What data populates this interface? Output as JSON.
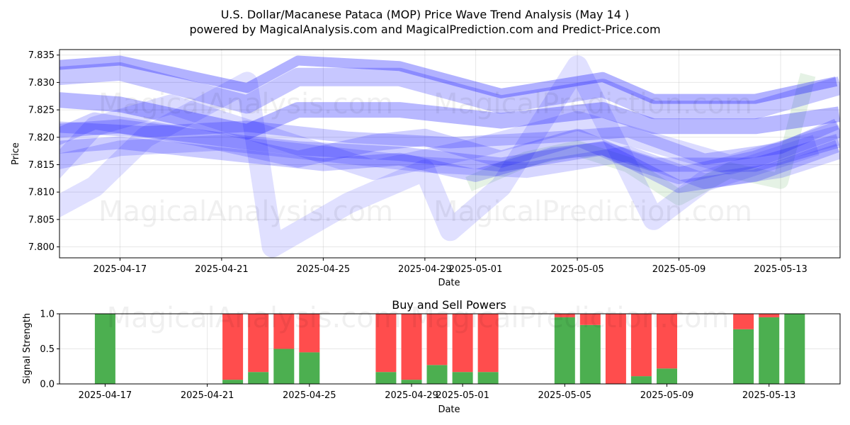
{
  "titles": {
    "main_line1": "U.S. Dollar/Macanese Pataca (MOP) Price Wave Trend Analysis (May 14 )",
    "main_line2": "powered by MagicalAnalysis.com and MagicalPrediction.com and Predict-Price.com"
  },
  "watermarks": {
    "left": "MagicalAnalysis.com",
    "right": "MagicalPrediction.com",
    "bottom": "MagicalAnalysis.com    MagicalPrediction.com"
  },
  "colors": {
    "wave": "#0000ff",
    "wave_green": "#008000",
    "buy": "#4caf50",
    "sell": "#ff4d4d"
  },
  "chart_data": [
    {
      "type": "area",
      "title": "",
      "xlabel": "Date",
      "ylabel": "Price",
      "ylim": [
        7.798,
        7.836
      ],
      "yticks": [
        "7.800",
        "7.805",
        "7.810",
        "7.815",
        "7.820",
        "7.825",
        "7.830",
        "7.835"
      ],
      "xticks": [
        "2025-04-17",
        "2025-04-21",
        "2025-04-25",
        "2025-04-29",
        "2025-05-01",
        "2025-05-05",
        "2025-05-09",
        "2025-05-13"
      ],
      "grid": true,
      "series": [
        {
          "x": [
            "2025-04-14",
            "2025-04-17",
            "2025-04-22",
            "2025-04-24",
            "2025-04-28",
            "2025-05-02",
            "2025-05-06",
            "2025-05-08",
            "2025-05-12",
            "2025-05-15"
          ],
          "values": [
            7.827,
            7.826,
            7.821,
            7.825,
            7.825,
            7.823,
            7.825,
            7.822,
            7.822,
            7.824
          ]
        },
        {
          "x": [
            "2025-04-14",
            "2025-04-17",
            "2025-04-22",
            "2025-04-24",
            "2025-04-28",
            "2025-05-02",
            "2025-05-06",
            "2025-05-08",
            "2025-05-12",
            "2025-05-15"
          ],
          "values": [
            7.831,
            7.832,
            7.826,
            7.831,
            7.831,
            7.826,
            7.829,
            7.825,
            7.825,
            7.829
          ]
        },
        {
          "x": [
            "2025-04-14",
            "2025-04-17",
            "2025-04-22",
            "2025-04-24",
            "2025-04-28",
            "2025-05-02",
            "2025-05-06",
            "2025-05-08",
            "2025-05-12",
            "2025-05-15"
          ],
          "values": [
            7.821,
            7.822,
            7.819,
            7.818,
            7.817,
            7.815,
            7.818,
            7.815,
            7.815,
            7.819
          ]
        },
        {
          "x": [
            "2025-04-14",
            "2025-04-16",
            "2025-04-20",
            "2025-04-24",
            "2025-04-27",
            "2025-04-29",
            "2025-05-02",
            "2025-05-05",
            "2025-05-07",
            "2025-05-09",
            "2025-05-12",
            "2025-05-15"
          ],
          "values": [
            7.819,
            7.823,
            7.82,
            7.816,
            7.819,
            7.82,
            7.816,
            7.82,
            7.816,
            7.813,
            7.816,
            7.821
          ]
        },
        {
          "x": [
            "2025-04-14",
            "2025-04-16",
            "2025-04-18",
            "2025-04-22",
            "2025-04-23",
            "2025-04-26",
            "2025-04-29",
            "2025-04-30",
            "2025-05-02",
            "2025-05-05",
            "2025-05-08",
            "2025-05-10",
            "2025-05-14"
          ],
          "values": [
            7.806,
            7.811,
            7.82,
            7.83,
            7.8,
            7.808,
            7.814,
            7.803,
            7.811,
            7.833,
            7.805,
            7.812,
            7.818
          ]
        },
        {
          "x": [
            "2025-04-14",
            "2025-04-17",
            "2025-04-21",
            "2025-04-25",
            "2025-04-28",
            "2025-05-01",
            "2025-05-04",
            "2025-05-06",
            "2025-05-09",
            "2025-05-12",
            "2025-05-15"
          ],
          "values": [
            7.818,
            7.819,
            7.817,
            7.815,
            7.816,
            7.813,
            7.817,
            7.818,
            7.811,
            7.813,
            7.818
          ]
        },
        {
          "x": [
            "2025-04-14",
            "2025-04-18",
            "2025-04-22",
            "2025-04-26",
            "2025-04-30",
            "2025-05-04",
            "2025-05-07",
            "2025-05-10",
            "2025-05-13",
            "2025-05-15"
          ],
          "values": [
            7.822,
            7.821,
            7.822,
            7.82,
            7.819,
            7.82,
            7.821,
            7.816,
            7.818,
            7.822
          ]
        },
        {
          "x": [
            "2025-04-14",
            "2025-04-16",
            "2025-04-19",
            "2025-04-23",
            "2025-04-27",
            "2025-05-01",
            "2025-05-05",
            "2025-05-08",
            "2025-05-11",
            "2025-05-15"
          ],
          "values": [
            7.812,
            7.822,
            7.826,
            7.82,
            7.814,
            7.818,
            7.823,
            7.819,
            7.815,
            7.82
          ]
        },
        {
          "x": [
            "2025-04-14",
            "2025-04-17",
            "2025-04-21",
            "2025-04-25",
            "2025-04-29",
            "2025-05-03",
            "2025-05-07",
            "2025-05-10",
            "2025-05-13",
            "2025-05-15"
          ],
          "values": [
            7.815,
            7.818,
            7.819,
            7.817,
            7.815,
            7.814,
            7.817,
            7.812,
            7.814,
            7.817
          ]
        },
        {
          "x": [
            "2025-04-14",
            "2025-04-17",
            "2025-04-22",
            "2025-04-24",
            "2025-04-28",
            "2025-05-02",
            "2025-05-06",
            "2025-05-08",
            "2025-05-12",
            "2025-05-15"
          ],
          "values": [
            7.833,
            7.834,
            7.829,
            7.834,
            7.833,
            7.828,
            7.831,
            7.827,
            7.827,
            7.83
          ]
        }
      ],
      "green_series": [
        {
          "x": [
            "2025-05-01",
            "2025-05-03",
            "2025-05-05",
            "2025-05-07",
            "2025-05-09",
            "2025-05-11",
            "2025-05-13",
            "2025-05-14"
          ],
          "values": [
            7.812,
            7.816,
            7.818,
            7.815,
            7.809,
            7.814,
            7.812,
            7.83
          ]
        }
      ]
    },
    {
      "type": "bar",
      "title": "Buy and Sell Powers",
      "xlabel": "Date",
      "ylabel": "Signal Strength",
      "ylim": [
        0,
        1.0
      ],
      "yticks": [
        "0.0",
        "0.5",
        "1.0"
      ],
      "xticks": [
        "2025-04-17",
        "2025-04-21",
        "2025-04-25",
        "2025-04-29",
        "2025-05-01",
        "2025-05-05",
        "2025-05-09",
        "2025-05-13"
      ],
      "grid": true,
      "categories": [
        "2025-04-17",
        "2025-04-22",
        "2025-04-23",
        "2025-04-24",
        "2025-04-25",
        "2025-04-28",
        "2025-04-29",
        "2025-04-30",
        "2025-05-01",
        "2025-05-02",
        "2025-05-05",
        "2025-05-06",
        "2025-05-07",
        "2025-05-08",
        "2025-05-09",
        "2025-05-12",
        "2025-05-13",
        "2025-05-14"
      ],
      "series": [
        {
          "name": "Buy",
          "values": [
            1.0,
            0.06,
            0.17,
            0.5,
            0.45,
            0.17,
            0.06,
            0.27,
            0.17,
            0.17,
            0.95,
            0.84,
            0.0,
            0.11,
            0.22,
            0.78,
            0.95,
            1.0
          ]
        },
        {
          "name": "Sell",
          "values": [
            0.0,
            0.94,
            0.83,
            0.5,
            0.55,
            0.83,
            0.94,
            0.73,
            0.83,
            0.83,
            0.05,
            0.16,
            1.0,
            0.89,
            0.78,
            0.22,
            0.05,
            0.0
          ]
        }
      ]
    }
  ]
}
